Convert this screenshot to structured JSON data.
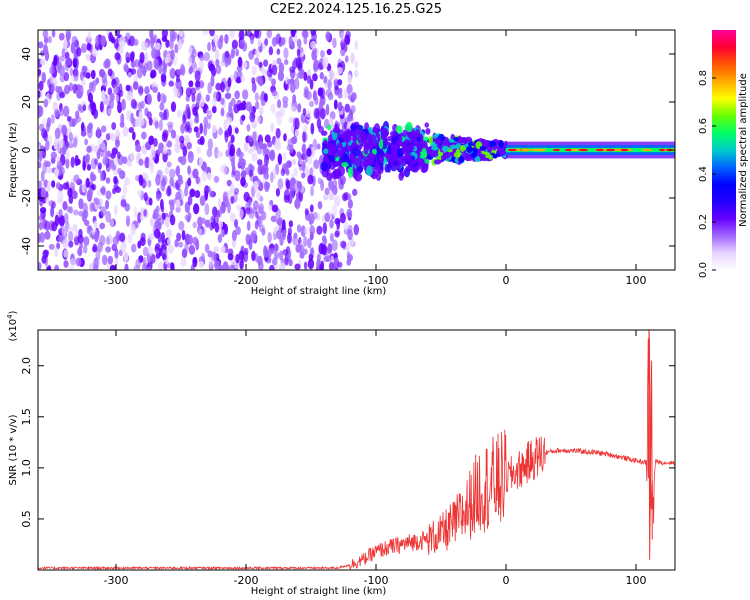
{
  "title": "C2E2.2024.125.16.25.G25",
  "colors": {
    "snr_line": "#ee3333",
    "spectrogram_points": "#7a1fff",
    "colormap": [
      "#ffffff",
      "#e6d3ff",
      "#a066ff",
      "#6600ff",
      "#2200ff",
      "#0000ff",
      "#0066ff",
      "#00cccc",
      "#00ff66",
      "#66ff00",
      "#ffff00",
      "#ffaa00",
      "#ff5500",
      "#ff0033",
      "#ff0099"
    ]
  },
  "chart_data": [
    {
      "type": "heatmap",
      "name": "spectrogram",
      "xlabel": "Height of straight line (km)",
      "ylabel": "Frequency (Hz)",
      "xlim": [
        -360,
        130
      ],
      "ylim": [
        -50,
        50
      ],
      "x_ticks": [
        -300,
        -200,
        -100,
        0,
        100
      ],
      "y_ticks": [
        -40,
        -20,
        0,
        20,
        40
      ],
      "colorbar": {
        "label": "Normalized spectral amplitude",
        "range": [
          0.0,
          1.0
        ],
        "ticks": [
          "0.0",
          "0.2",
          "0.4",
          "0.6",
          "0.8"
        ]
      },
      "regions": [
        {
          "x": [
            -360,
            -115
          ],
          "freq_range": [
            -50,
            50
          ],
          "amplitude": 0.15,
          "description_level": "scattered noise"
        },
        {
          "x": [
            -140,
            -60
          ],
          "freq_range": [
            -15,
            17
          ],
          "amplitude": 0.35
        },
        {
          "x": [
            -60,
            0
          ],
          "freq_range": [
            -8,
            8
          ],
          "amplitude": 0.45
        },
        {
          "x": [
            0,
            130
          ],
          "freq_range": [
            -2,
            2
          ],
          "amplitude": 0.7
        }
      ]
    },
    {
      "type": "line",
      "name": "snr",
      "xlabel": "Height of straight line (km)",
      "ylabel": "SNR (10 * v/v)",
      "multiplier_label": "(x10",
      "multiplier_exponent": "4",
      "xlim": [
        -360,
        130
      ],
      "ylim": [
        0,
        2.35
      ],
      "x_ticks": [
        -300,
        -200,
        -100,
        0,
        100
      ],
      "y_ticks": [
        0.5,
        1.0,
        1.5,
        2.0
      ],
      "y_tick_labels": [
        "0.5",
        "1.0",
        "1.5",
        "2.0"
      ],
      "series": [
        {
          "x": [
            -360,
            -300,
            -200,
            -130,
            -120,
            -110,
            -100,
            -90,
            -80,
            -70,
            -60,
            -50,
            -40,
            -30,
            -20,
            -10,
            0,
            10,
            20,
            30,
            40,
            50,
            60,
            70,
            80,
            90,
            100,
            105,
            108,
            110,
            112,
            115,
            120,
            130
          ],
          "y": [
            0.02,
            0.02,
            0.02,
            0.02,
            0.05,
            0.1,
            0.18,
            0.22,
            0.25,
            0.28,
            0.3,
            0.35,
            0.45,
            0.6,
            0.8,
            0.85,
            0.9,
            0.98,
            1.08,
            1.15,
            1.17,
            1.17,
            1.16,
            1.15,
            1.13,
            1.1,
            1.07,
            1.06,
            1.05,
            2.3,
            0.5,
            1.07,
            1.05,
            1.05
          ]
        }
      ]
    }
  ]
}
